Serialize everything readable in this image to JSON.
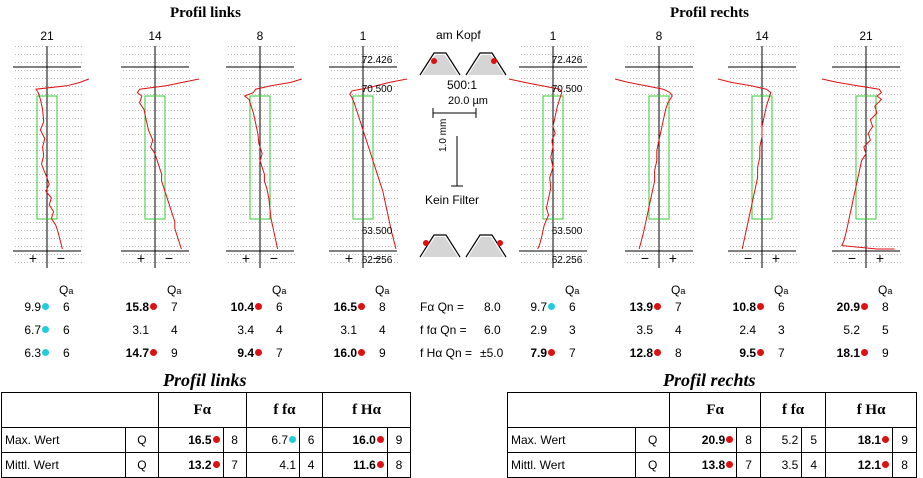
{
  "sections": {
    "left_title": "Profil links",
    "right_title": "Profil rechts"
  },
  "center": {
    "title": "am Kopf",
    "scale": "500:1",
    "scale_x": "20.0 µm",
    "scale_y": "1.0 mm",
    "filter": "Kein Filter"
  },
  "legend": {
    "F_label": "Fα Qn =",
    "F_value": "8.0",
    "ff_label": "f fα Qn =",
    "ff_value": "6.0",
    "fH_label": "f Hα Qn =",
    "fH_value": "±5.0"
  },
  "colors": {
    "trace": "#e01010",
    "box": "#33cc33",
    "good": "#22ccdd",
    "bad": "#dd1111",
    "axis": "#000000",
    "grid": "#bbbbbb"
  },
  "chart_data": {
    "type": "line",
    "panels": [
      {
        "tooth": "21",
        "side": "left",
        "signs": [
          "+",
          "−"
        ],
        "labels": [],
        "values": [
          {
            "v": "9.9",
            "q": "6",
            "dot": "good",
            "bold": false
          },
          {
            "v": "6.7",
            "q": "6",
            "dot": "good",
            "bold": false
          },
          {
            "v": "6.3",
            "q": "6",
            "dot": "good",
            "bold": false
          }
        ],
        "trace": [
          [
            38,
            0
          ],
          [
            30,
            2
          ],
          [
            18,
            4
          ],
          [
            -10,
            6
          ],
          [
            -8,
            8
          ],
          [
            -6,
            12
          ],
          [
            -4,
            18
          ],
          [
            -3,
            25
          ],
          [
            -6,
            30
          ],
          [
            -2,
            35
          ],
          [
            -4,
            40
          ],
          [
            -3,
            45
          ],
          [
            -5,
            50
          ],
          [
            -2,
            55
          ],
          [
            0,
            58
          ],
          [
            2,
            62
          ],
          [
            -1,
            66
          ],
          [
            4,
            70
          ],
          [
            2,
            74
          ],
          [
            6,
            78
          ],
          [
            4,
            82
          ],
          [
            8,
            86
          ],
          [
            10,
            90
          ],
          [
            12,
            95
          ],
          [
            14,
            100
          ]
        ]
      },
      {
        "tooth": "14",
        "side": "left",
        "signs": [
          "+",
          "−"
        ],
        "labels": [],
        "values": [
          {
            "v": "15.8",
            "q": "7",
            "dot": "bad",
            "bold": true
          },
          {
            "v": "3.1",
            "q": "4",
            "dot": "",
            "bold": false
          },
          {
            "v": "14.7",
            "q": "9",
            "dot": "bad",
            "bold": true
          }
        ],
        "trace": [
          [
            40,
            0
          ],
          [
            25,
            2
          ],
          [
            10,
            4
          ],
          [
            -14,
            6
          ],
          [
            -16,
            8
          ],
          [
            -12,
            10
          ],
          [
            -14,
            14
          ],
          [
            -10,
            18
          ],
          [
            -8,
            24
          ],
          [
            -6,
            30
          ],
          [
            -2,
            36
          ],
          [
            -4,
            40
          ],
          [
            0,
            44
          ],
          [
            2,
            48
          ],
          [
            4,
            52
          ],
          [
            6,
            56
          ],
          [
            6,
            60
          ],
          [
            8,
            64
          ],
          [
            10,
            68
          ],
          [
            12,
            72
          ],
          [
            14,
            76
          ],
          [
            16,
            80
          ],
          [
            18,
            84
          ],
          [
            18,
            88
          ],
          [
            20,
            92
          ],
          [
            22,
            96
          ],
          [
            24,
            100
          ]
        ]
      },
      {
        "tooth": "8",
        "side": "left",
        "signs": [
          "+",
          "−"
        ],
        "labels": [],
        "values": [
          {
            "v": "10.4",
            "q": "6",
            "dot": "bad",
            "bold": true
          },
          {
            "v": "3.4",
            "q": "4",
            "dot": "",
            "bold": false
          },
          {
            "v": "9.4",
            "q": "7",
            "dot": "bad",
            "bold": true
          }
        ],
        "trace": [
          [
            38,
            0
          ],
          [
            28,
            2
          ],
          [
            10,
            4
          ],
          [
            -4,
            6
          ],
          [
            -6,
            8
          ],
          [
            -14,
            10
          ],
          [
            -10,
            12
          ],
          [
            -8,
            16
          ],
          [
            -6,
            20
          ],
          [
            -4,
            26
          ],
          [
            -2,
            32
          ],
          [
            -1,
            38
          ],
          [
            2,
            44
          ],
          [
            0,
            48
          ],
          [
            2,
            52
          ],
          [
            4,
            56
          ],
          [
            4,
            60
          ],
          [
            6,
            64
          ],
          [
            8,
            70
          ],
          [
            9,
            76
          ],
          [
            10,
            82
          ],
          [
            12,
            88
          ],
          [
            14,
            94
          ],
          [
            16,
            100
          ]
        ]
      },
      {
        "tooth": "1",
        "side": "left",
        "signs": [
          "+",
          "−"
        ],
        "labels": [
          "72.426",
          "70.500",
          "63.500",
          "62.256"
        ],
        "values": [
          {
            "v": "16.5",
            "q": "8",
            "dot": "bad",
            "bold": true
          },
          {
            "v": "3.1",
            "q": "4",
            "dot": "",
            "bold": false
          },
          {
            "v": "16.0",
            "q": "9",
            "dot": "bad",
            "bold": true
          }
        ],
        "trace": [
          [
            40,
            0
          ],
          [
            24,
            2
          ],
          [
            6,
            5
          ],
          [
            -10,
            7
          ],
          [
            -12,
            9
          ],
          [
            -10,
            11
          ],
          [
            -8,
            14
          ],
          [
            -6,
            18
          ],
          [
            -4,
            22
          ],
          [
            -2,
            26
          ],
          [
            0,
            30
          ],
          [
            2,
            34
          ],
          [
            4,
            38
          ],
          [
            6,
            42
          ],
          [
            8,
            46
          ],
          [
            10,
            50
          ],
          [
            12,
            54
          ],
          [
            14,
            58
          ],
          [
            16,
            62
          ],
          [
            18,
            66
          ],
          [
            20,
            72
          ],
          [
            22,
            78
          ],
          [
            24,
            84
          ],
          [
            26,
            90
          ],
          [
            28,
            95
          ],
          [
            30,
            100
          ]
        ]
      },
      {
        "tooth": "1",
        "side": "right",
        "signs": [
          "",
          ""
        ],
        "labels": [
          "72.426",
          "70.500",
          "63.500",
          "62.256"
        ],
        "values": [
          {
            "v": "9.7",
            "q": "6",
            "dot": "good",
            "bold": false
          },
          {
            "v": "2.9",
            "q": "3",
            "dot": "",
            "bold": false
          },
          {
            "v": "7.9",
            "q": "7",
            "dot": "bad",
            "bold": true
          }
        ],
        "trace": [
          [
            -40,
            0
          ],
          [
            -26,
            2
          ],
          [
            -10,
            4
          ],
          [
            6,
            6
          ],
          [
            8,
            8
          ],
          [
            6,
            12
          ],
          [
            4,
            16
          ],
          [
            2,
            22
          ],
          [
            0,
            28
          ],
          [
            2,
            32
          ],
          [
            -1,
            36
          ],
          [
            0,
            40
          ],
          [
            -2,
            46
          ],
          [
            0,
            52
          ],
          [
            -3,
            58
          ],
          [
            -2,
            64
          ],
          [
            -4,
            70
          ],
          [
            -6,
            76
          ],
          [
            -4,
            80
          ],
          [
            -8,
            86
          ],
          [
            -10,
            92
          ],
          [
            -12,
            97
          ],
          [
            -14,
            100
          ]
        ]
      },
      {
        "tooth": "8",
        "side": "right",
        "signs": [
          "−",
          "+"
        ],
        "labels": [],
        "values": [
          {
            "v": "13.9",
            "q": "7",
            "dot": "bad",
            "bold": true
          },
          {
            "v": "3.5",
            "q": "4",
            "dot": "",
            "bold": false
          },
          {
            "v": "12.8",
            "q": "8",
            "dot": "bad",
            "bold": true
          }
        ],
        "trace": [
          [
            -40,
            0
          ],
          [
            -28,
            2
          ],
          [
            -12,
            4
          ],
          [
            4,
            6
          ],
          [
            10,
            8
          ],
          [
            12,
            10
          ],
          [
            8,
            14
          ],
          [
            6,
            18
          ],
          [
            4,
            24
          ],
          [
            2,
            30
          ],
          [
            0,
            36
          ],
          [
            -2,
            42
          ],
          [
            -2,
            48
          ],
          [
            -4,
            54
          ],
          [
            -4,
            60
          ],
          [
            -6,
            66
          ],
          [
            -8,
            72
          ],
          [
            -10,
            78
          ],
          [
            -12,
            84
          ],
          [
            -14,
            90
          ],
          [
            -16,
            95
          ],
          [
            -18,
            100
          ]
        ]
      },
      {
        "tooth": "14",
        "side": "right",
        "signs": [
          "−",
          "+"
        ],
        "labels": [],
        "values": [
          {
            "v": "10.8",
            "q": "6",
            "dot": "bad",
            "bold": true
          },
          {
            "v": "2.4",
            "q": "3",
            "dot": "",
            "bold": false
          },
          {
            "v": "9.5",
            "q": "7",
            "dot": "bad",
            "bold": true
          }
        ],
        "trace": [
          [
            -40,
            0
          ],
          [
            -28,
            2
          ],
          [
            -10,
            4
          ],
          [
            4,
            6
          ],
          [
            8,
            8
          ],
          [
            6,
            12
          ],
          [
            4,
            16
          ],
          [
            2,
            22
          ],
          [
            0,
            28
          ],
          [
            0,
            34
          ],
          [
            -2,
            40
          ],
          [
            -2,
            46
          ],
          [
            -4,
            52
          ],
          [
            -4,
            58
          ],
          [
            -6,
            64
          ],
          [
            -8,
            70
          ],
          [
            -10,
            76
          ],
          [
            -12,
            82
          ],
          [
            -14,
            88
          ],
          [
            -16,
            94
          ],
          [
            -18,
            100
          ]
        ]
      },
      {
        "tooth": "21",
        "side": "right",
        "signs": [
          "−",
          "+"
        ],
        "labels": [],
        "values": [
          {
            "v": "20.9",
            "q": "8",
            "dot": "bad",
            "bold": true
          },
          {
            "v": "5.2",
            "q": "5",
            "dot": "",
            "bold": false
          },
          {
            "v": "18.1",
            "q": "9",
            "dot": "bad",
            "bold": true
          }
        ],
        "trace": [
          [
            -40,
            0
          ],
          [
            -26,
            2
          ],
          [
            -8,
            4
          ],
          [
            12,
            6
          ],
          [
            14,
            8
          ],
          [
            10,
            10
          ],
          [
            14,
            12
          ],
          [
            8,
            16
          ],
          [
            10,
            20
          ],
          [
            4,
            24
          ],
          [
            6,
            28
          ],
          [
            2,
            32
          ],
          [
            4,
            36
          ],
          [
            -2,
            40
          ],
          [
            0,
            44
          ],
          [
            -4,
            48
          ],
          [
            -6,
            54
          ],
          [
            -8,
            60
          ],
          [
            -10,
            66
          ],
          [
            -12,
            72
          ],
          [
            -14,
            78
          ],
          [
            -16,
            84
          ],
          [
            -18,
            90
          ],
          [
            -20,
            95
          ],
          [
            -22,
            98
          ],
          [
            10,
            100
          ],
          [
            26,
            100
          ]
        ]
      }
    ]
  },
  "tables": [
    {
      "title": "Profil links",
      "headers": [
        "Fα",
        "f fα",
        "f Hα"
      ],
      "rows": [
        {
          "label": "Max. Wert",
          "q": "Q",
          "cells": [
            {
              "v": "16.5",
              "dot": "bad",
              "bold": true,
              "q": "8"
            },
            {
              "v": "6.7",
              "dot": "good",
              "bold": false,
              "q": "6"
            },
            {
              "v": "16.0",
              "dot": "bad",
              "bold": true,
              "q": "9"
            }
          ]
        },
        {
          "label": "Mittl. Wert",
          "q": "Q",
          "cells": [
            {
              "v": "13.2",
              "dot": "bad",
              "bold": true,
              "q": "7"
            },
            {
              "v": "4.1",
              "dot": "",
              "bold": false,
              "q": "4"
            },
            {
              "v": "11.6",
              "dot": "bad",
              "bold": true,
              "q": "8"
            }
          ]
        }
      ]
    },
    {
      "title": "Profil rechts",
      "headers": [
        "Fα",
        "f fα",
        "f Hα"
      ],
      "rows": [
        {
          "label": "Max. Wert",
          "q": "Q",
          "cells": [
            {
              "v": "20.9",
              "dot": "bad",
              "bold": true,
              "q": "8"
            },
            {
              "v": "5.2",
              "dot": "",
              "bold": false,
              "q": "5"
            },
            {
              "v": "18.1",
              "dot": "bad",
              "bold": true,
              "q": "9"
            }
          ]
        },
        {
          "label": "Mittl. Wert",
          "q": "Q",
          "cells": [
            {
              "v": "13.8",
              "dot": "bad",
              "bold": true,
              "q": "7"
            },
            {
              "v": "3.5",
              "dot": "",
              "bold": false,
              "q": "4"
            },
            {
              "v": "12.1",
              "dot": "bad",
              "bold": true,
              "q": "8"
            }
          ]
        }
      ]
    }
  ]
}
